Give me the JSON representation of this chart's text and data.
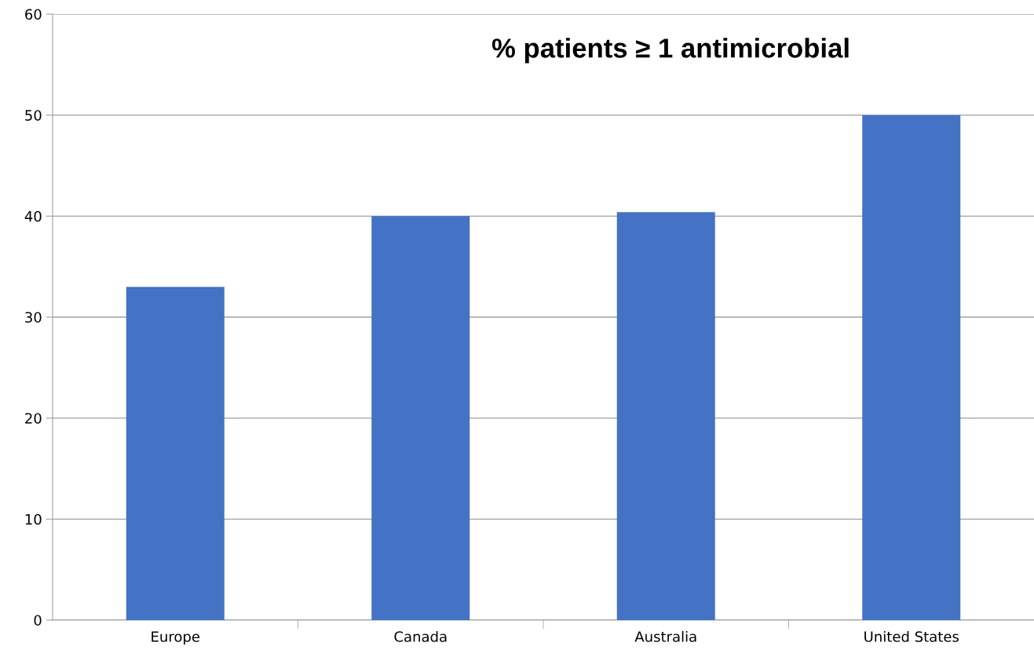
{
  "chart_data": {
    "type": "bar",
    "title": "% patients ≥ 1 antimicrobial",
    "categories": [
      "Europe",
      "Canada",
      "Australia",
      "United States"
    ],
    "values": [
      33,
      40,
      40.4,
      50
    ],
    "color": "#4472c4",
    "ylim": [
      0,
      60
    ],
    "yticks": [
      0,
      10,
      20,
      30,
      40,
      50,
      60
    ],
    "grid": "y"
  }
}
